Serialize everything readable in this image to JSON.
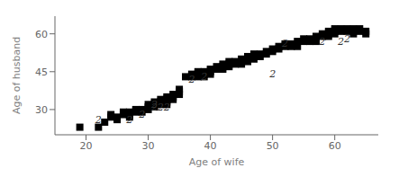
{
  "chart_data": {
    "type": "scatter",
    "xlabel": "Age of wife",
    "ylabel": "Age of husband",
    "xlim": [
      15,
      67
    ],
    "ylim": [
      20,
      67
    ],
    "xticks": [
      20,
      30,
      40,
      50,
      60
    ],
    "yticks": [
      30,
      45,
      60
    ],
    "marker": "square",
    "x": [
      19,
      22,
      23,
      24,
      24,
      25,
      25,
      26,
      26,
      27,
      27,
      27,
      27,
      28,
      28,
      29,
      29,
      30,
      30,
      30,
      31,
      31,
      31,
      31,
      32,
      32,
      32,
      33,
      33,
      33,
      33,
      33,
      34,
      34,
      34,
      35,
      35,
      35,
      36,
      37,
      37,
      38,
      38,
      38,
      39,
      39,
      39,
      40,
      40,
      40,
      41,
      41,
      41,
      42,
      42,
      42,
      43,
      43,
      43,
      44,
      44,
      45,
      45,
      46,
      46,
      46,
      47,
      47,
      47,
      48,
      48,
      49,
      49,
      50,
      50,
      51,
      51,
      52,
      52,
      53,
      53,
      54,
      54,
      55,
      55,
      56,
      56,
      57,
      57,
      58,
      58,
      59,
      59,
      59,
      60,
      60,
      60,
      61,
      61,
      62,
      62,
      63,
      63,
      64,
      64,
      65,
      65
    ],
    "values": [
      23,
      23,
      25,
      28,
      27,
      27,
      26,
      28,
      29,
      28,
      27,
      29,
      28,
      29,
      30,
      30,
      29,
      30,
      32,
      31,
      32,
      33,
      32,
      31,
      32,
      33,
      34,
      34,
      33,
      35,
      32,
      34,
      36,
      35,
      34,
      38,
      36,
      37,
      43,
      44,
      43,
      45,
      43,
      44,
      44,
      43,
      45,
      45,
      46,
      44,
      46,
      47,
      46,
      47,
      46,
      48,
      48,
      47,
      49,
      48,
      49,
      50,
      48,
      50,
      51,
      49,
      51,
      52,
      50,
      51,
      52,
      52,
      53,
      53,
      54,
      54,
      55,
      55,
      56,
      56,
      55,
      55,
      57,
      57,
      58,
      57,
      58,
      57,
      59,
      59,
      60,
      59,
      60,
      61,
      60,
      61,
      62,
      61,
      62,
      61,
      62,
      62,
      60,
      61,
      62,
      61,
      60
    ],
    "annotations": [
      {
        "x": 22,
        "y": 26,
        "text": "2"
      },
      {
        "x": 27,
        "y": 26,
        "text": "2"
      },
      {
        "x": 29,
        "y": 28,
        "text": "2"
      },
      {
        "x": 31,
        "y": 31,
        "text": "2"
      },
      {
        "x": 31,
        "y": 32,
        "text": "2"
      },
      {
        "x": 32,
        "y": 31,
        "text": "2"
      },
      {
        "x": 33,
        "y": 31,
        "text": "2"
      },
      {
        "x": 37,
        "y": 42,
        "text": "2"
      },
      {
        "x": 39,
        "y": 43,
        "text": "2"
      },
      {
        "x": 50,
        "y": 44,
        "text": "2"
      },
      {
        "x": 52,
        "y": 56,
        "text": "2"
      },
      {
        "x": 58,
        "y": 57,
        "text": "2"
      },
      {
        "x": 61,
        "y": 57,
        "text": "2"
      },
      {
        "x": 62,
        "y": 58,
        "text": "2"
      }
    ]
  }
}
